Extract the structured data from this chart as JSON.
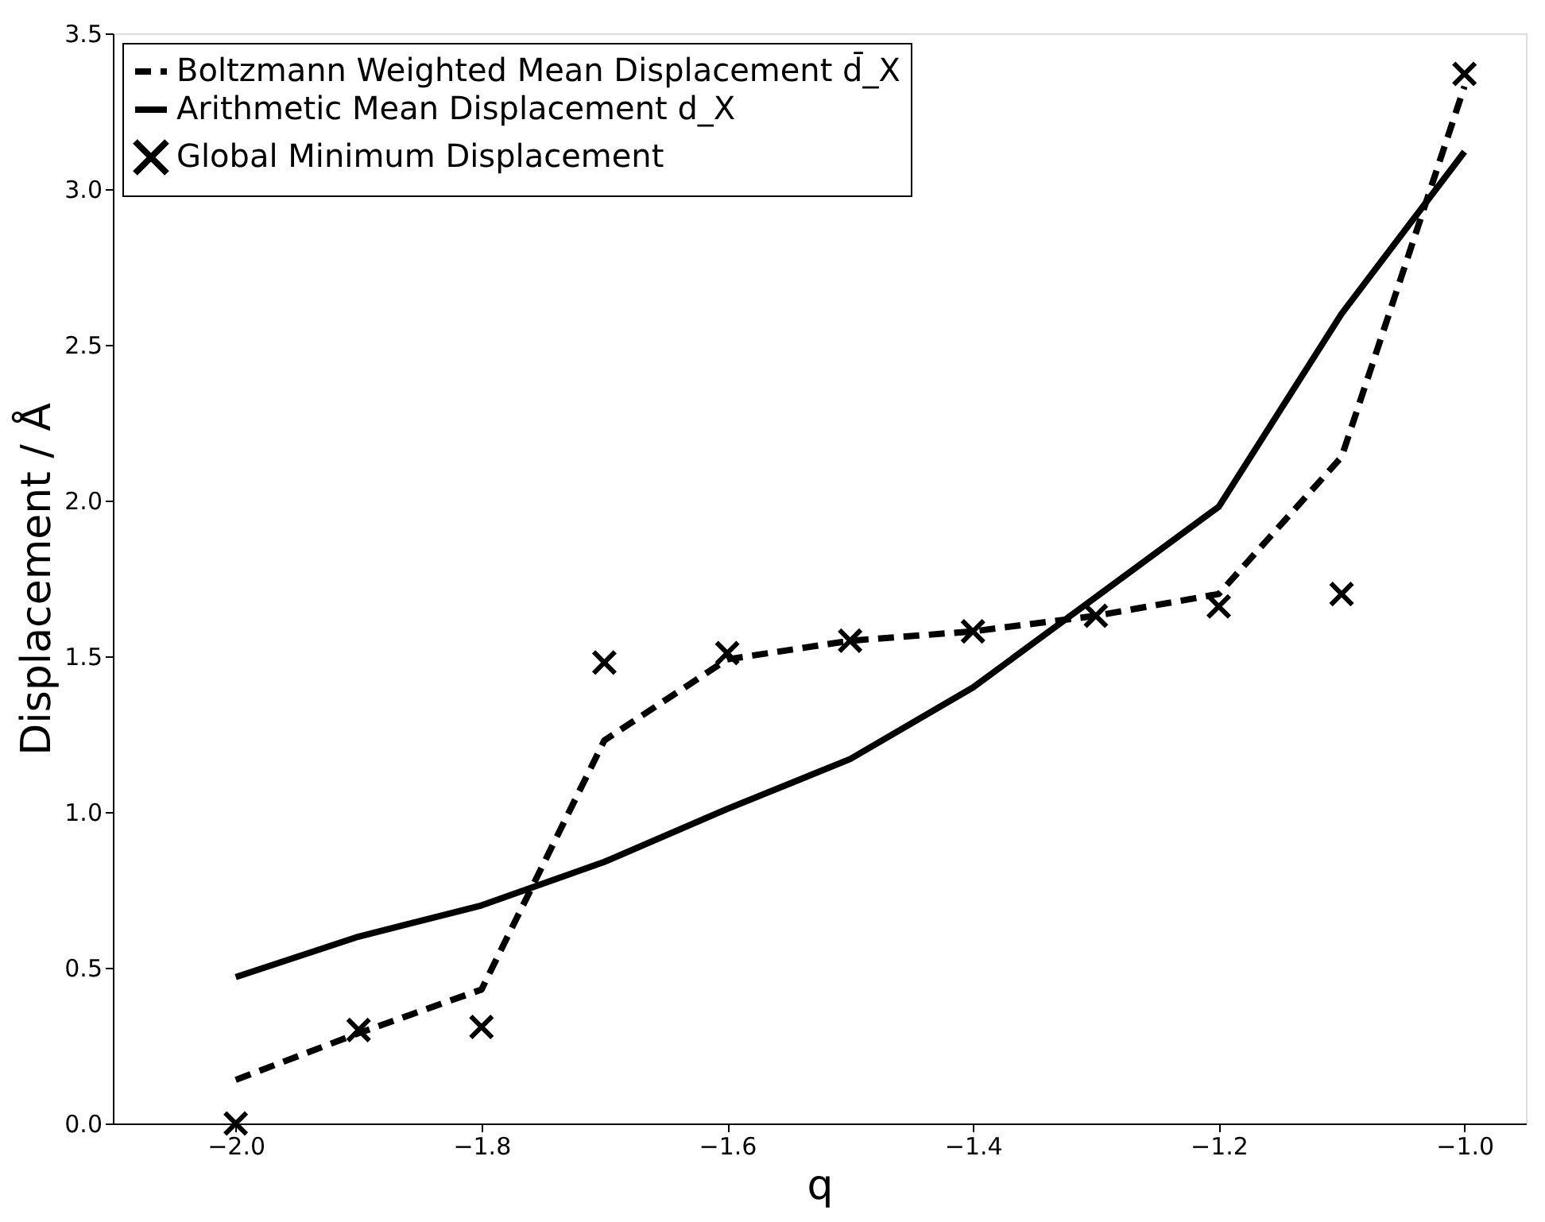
{
  "chart_data": {
    "type": "line",
    "xlabel": "q",
    "ylabel": "Displacement / Å",
    "x": [
      -2.0,
      -1.9,
      -1.8,
      -1.7,
      -1.6,
      -1.5,
      -1.4,
      -1.3,
      -1.2,
      -1.1,
      -1.0
    ],
    "series": [
      {
        "name": "Boltzmann Weighted Mean Displacement d̄_X",
        "line_style": "dashed",
        "color": "#000000",
        "values": [
          0.14,
          0.29,
          0.43,
          1.23,
          1.49,
          1.55,
          1.58,
          1.63,
          1.7,
          2.14,
          3.33
        ]
      },
      {
        "name": "Arithmetic Mean Displacement d_X",
        "line_style": "solid",
        "color": "#000000",
        "values": [
          0.47,
          0.6,
          0.7,
          0.84,
          1.01,
          1.17,
          1.4,
          1.69,
          1.98,
          2.6,
          3.12
        ]
      },
      {
        "name": "Global Minimum Displacement",
        "type": "scatter",
        "marker": "cross",
        "color": "#000000",
        "values": [
          0.0,
          0.3,
          0.31,
          1.48,
          1.51,
          1.55,
          1.58,
          1.63,
          1.66,
          1.7,
          3.37
        ]
      }
    ],
    "xlim": [
      -2.1,
      -0.95
    ],
    "xticks": [
      {
        "value": -2.0,
        "label": "−2.0"
      },
      {
        "value": -1.8,
        "label": "−1.8"
      },
      {
        "value": -1.6,
        "label": "−1.6"
      },
      {
        "value": -1.4,
        "label": "−1.4"
      },
      {
        "value": -1.2,
        "label": "−1.2"
      },
      {
        "value": -1.0,
        "label": "−1.0"
      }
    ],
    "ylim": [
      0,
      3.5
    ],
    "yticks": [
      {
        "value": 0,
        "label": "0.0"
      },
      0.5,
      {
        "value": 1,
        "label": "1.0"
      },
      1.5,
      {
        "value": 2,
        "label": "2.0"
      },
      2.5,
      {
        "value": 3,
        "label": "3.0"
      },
      3.5
    ],
    "legend": "top left",
    "grid": false
  }
}
